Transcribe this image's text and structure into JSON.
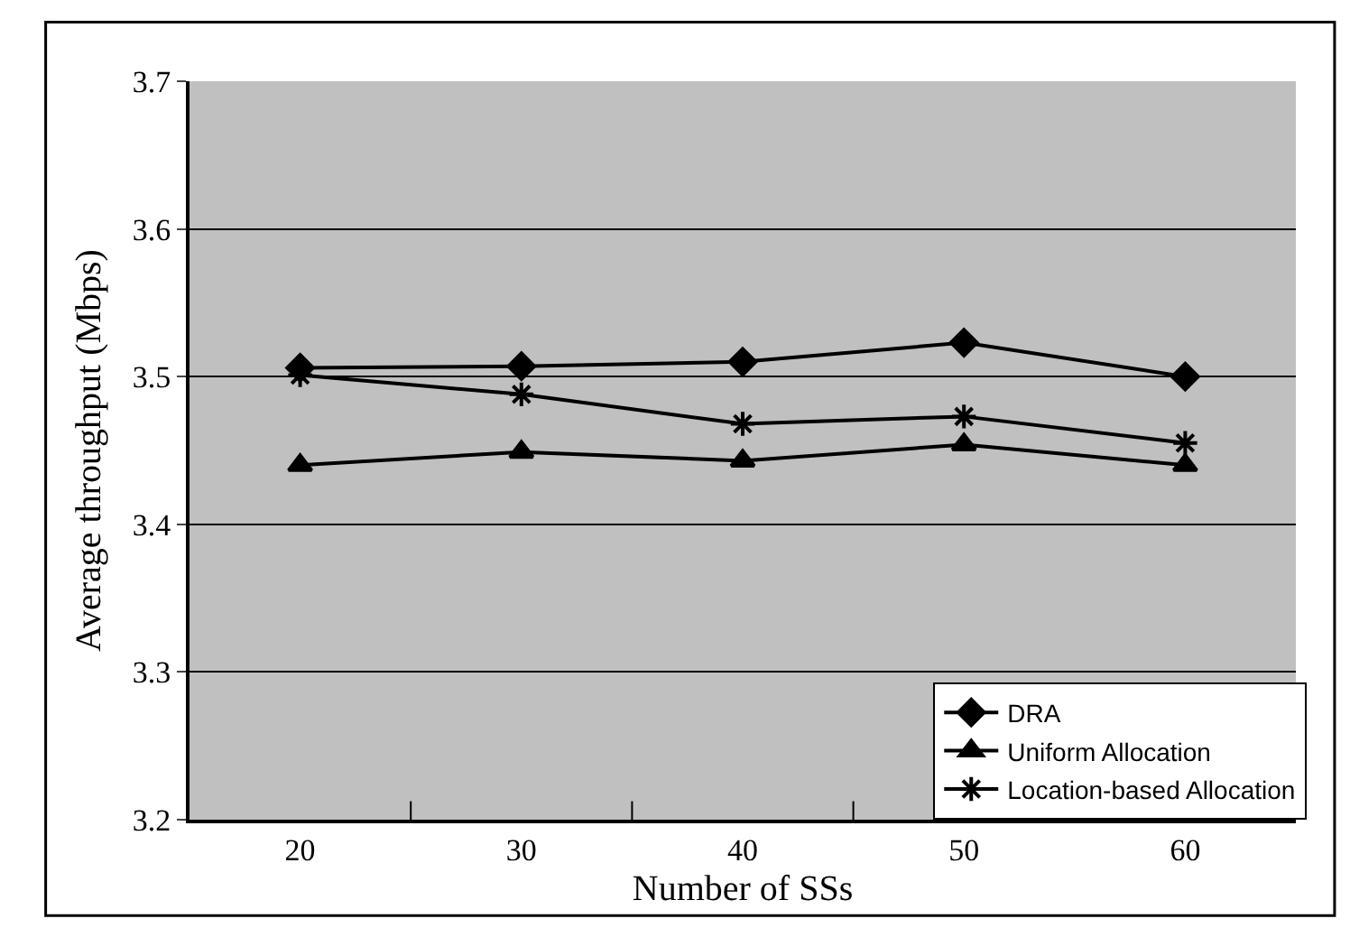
{
  "chart_data": {
    "type": "line",
    "xlabel": "Number of SSs",
    "ylabel": "Average throughput (Mbps)",
    "categories": [
      "20",
      "30",
      "40",
      "50",
      "60"
    ],
    "series": [
      {
        "name": "DRA",
        "color": "#000000",
        "marker": "diamond",
        "values": [
          3.506,
          3.507,
          3.51,
          3.523,
          3.5
        ]
      },
      {
        "name": "Uniform Allocation",
        "color": "#000000",
        "marker": "triangle",
        "values": [
          3.44,
          3.449,
          3.443,
          3.454,
          3.44
        ]
      },
      {
        "name": "Location-based Allocation",
        "color": "#000000",
        "marker": "cross",
        "values": [
          3.501,
          3.488,
          3.468,
          3.473,
          3.455
        ]
      }
    ],
    "ylim": [
      3.2,
      3.7
    ],
    "yticks": [
      3.2,
      3.3,
      3.4,
      3.5,
      3.6,
      3.7
    ],
    "grid": "y",
    "legend": "bottom right",
    "line_style": "solid"
  }
}
